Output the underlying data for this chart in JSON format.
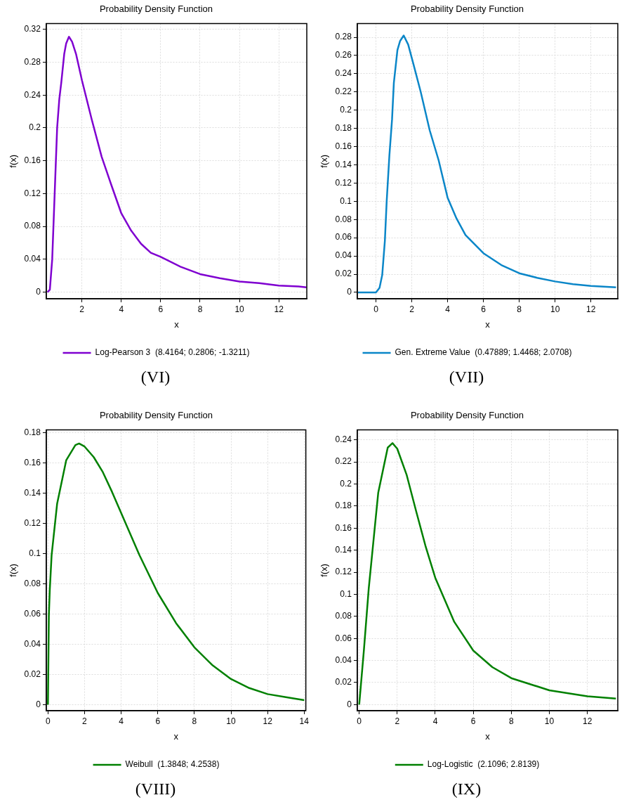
{
  "chart_data": [
    {
      "type": "line",
      "title": "Probability Density Function",
      "xlabel": "x",
      "ylabel": "f(x)",
      "grid": true,
      "legend": "bottom",
      "marker": "none",
      "annotations": [
        "(VI)"
      ],
      "x": [
        0.25,
        0.37,
        0.49,
        0.61,
        0.74,
        0.85,
        0.95,
        1.1,
        1.2,
        1.34,
        1.5,
        1.7,
        2,
        2.5,
        3,
        3.5,
        4,
        4.5,
        5,
        5.5,
        6,
        7,
        8,
        9,
        10,
        11,
        12,
        13,
        13.4
      ],
      "series": [
        {
          "name": "Log-Pearson 3  (8.4164; 0.2806; -1.3211)",
          "color": "#7f00d0",
          "values": [
            0,
            0.003,
            0.04,
            0.117,
            0.2,
            0.235,
            0.255,
            0.29,
            0.303,
            0.311,
            0.305,
            0.29,
            0.258,
            0.21,
            0.165,
            0.13,
            0.096,
            0.075,
            0.059,
            0.048,
            0.043,
            0.031,
            0.022,
            0.017,
            0.013,
            0.011,
            0.008,
            0.007,
            0.006
          ]
        }
      ],
      "xlim": [
        0.19,
        13.42
      ],
      "ylim": [
        -0.008,
        0.327
      ],
      "xticks": [
        2,
        4,
        6,
        8,
        10,
        12
      ],
      "yticks": [
        0,
        0.04,
        0.08,
        0.12,
        0.16,
        0.2,
        0.24,
        0.28,
        0.32
      ]
    },
    {
      "type": "line",
      "title": "Probability Density Function",
      "xlabel": "x",
      "ylabel": "f(x)",
      "grid": true,
      "legend": "bottom",
      "marker": "none",
      "annotations": [
        "(VII)"
      ],
      "x": [
        -1,
        0,
        0.2,
        0.35,
        0.5,
        0.6,
        0.75,
        0.9,
        1,
        1.2,
        1.35,
        1.55,
        1.8,
        2.1,
        2.5,
        3,
        3.5,
        4,
        4.5,
        5,
        6,
        7,
        8,
        9,
        10,
        11,
        12,
        13.4
      ],
      "series": [
        {
          "name": "Gen. Extreme Value  (0.47889; 1.4468; 2.0708)",
          "color": "#0a86c8",
          "values": [
            0,
            0,
            0.005,
            0.019,
            0.057,
            0.1,
            0.15,
            0.19,
            0.23,
            0.266,
            0.276,
            0.282,
            0.272,
            0.25,
            0.22,
            0.178,
            0.145,
            0.104,
            0.081,
            0.063,
            0.043,
            0.03,
            0.021,
            0.016,
            0.012,
            0.009,
            0.007,
            0.0055
          ]
        }
      ],
      "xlim": [
        -1.04,
        13.5
      ],
      "ylim": [
        -0.007,
        0.295
      ],
      "xticks": [
        0,
        2,
        4,
        6,
        8,
        10,
        12
      ],
      "yticks": [
        0,
        0.02,
        0.04,
        0.06,
        0.08,
        0.1,
        0.12,
        0.14,
        0.16,
        0.18,
        0.2,
        0.22,
        0.24,
        0.26,
        0.28
      ]
    },
    {
      "type": "line",
      "title": "Probability Density Function",
      "xlabel": "x",
      "ylabel": "f(x)",
      "grid": true,
      "legend": "bottom",
      "marker": "none",
      "annotations": [
        "(VIII)"
      ],
      "x": [
        0,
        0.05,
        0.1,
        0.2,
        0.5,
        1,
        1.5,
        1.7,
        2,
        2.5,
        3,
        3.5,
        4,
        5,
        6,
        7,
        8,
        9,
        10,
        11,
        12,
        13,
        14
      ],
      "series": [
        {
          "name": "Weibull  (1.3848; 4.2538)",
          "color": "#008000",
          "values": [
            0,
            0.059,
            0.076,
            0.099,
            0.133,
            0.162,
            0.172,
            0.173,
            0.171,
            0.164,
            0.154,
            0.141,
            0.127,
            0.099,
            0.074,
            0.054,
            0.038,
            0.026,
            0.017,
            0.011,
            0.007,
            0.005,
            0.003
          ]
        }
      ],
      "xlim": [
        -0.09,
        14.09
      ],
      "ylim": [
        -0.004,
        0.182
      ],
      "xticks": [
        0,
        2,
        4,
        6,
        8,
        10,
        12,
        14
      ],
      "yticks": [
        0,
        0.02,
        0.04,
        0.06,
        0.08,
        0.1,
        0.12,
        0.14,
        0.16,
        0.18
      ]
    },
    {
      "type": "line",
      "title": "Probability Density Function",
      "xlabel": "x",
      "ylabel": "f(x)",
      "grid": true,
      "legend": "bottom",
      "marker": "none",
      "annotations": [
        "(IX)"
      ],
      "x": [
        0,
        0.25,
        0.5,
        1,
        1.5,
        1.75,
        2,
        2.5,
        3,
        3.5,
        4,
        5,
        6,
        7,
        8,
        10,
        12,
        13.5
      ],
      "series": [
        {
          "name": "Log-Logistic  (2.1096; 2.8139)",
          "color": "#008000",
          "values": [
            0,
            0.05,
            0.105,
            0.192,
            0.233,
            0.237,
            0.232,
            0.208,
            0.175,
            0.143,
            0.115,
            0.075,
            0.049,
            0.034,
            0.024,
            0.013,
            0.0075,
            0.0055
          ]
        }
      ],
      "xlim": [
        -0.1,
        13.6
      ],
      "ylim": [
        -0.0055,
        0.249
      ],
      "xticks": [
        0,
        2,
        4,
        6,
        8,
        10,
        12
      ],
      "yticks": [
        0,
        0.02,
        0.04,
        0.06,
        0.08,
        0.1,
        0.12,
        0.14,
        0.16,
        0.18,
        0.2,
        0.22,
        0.24
      ]
    }
  ]
}
